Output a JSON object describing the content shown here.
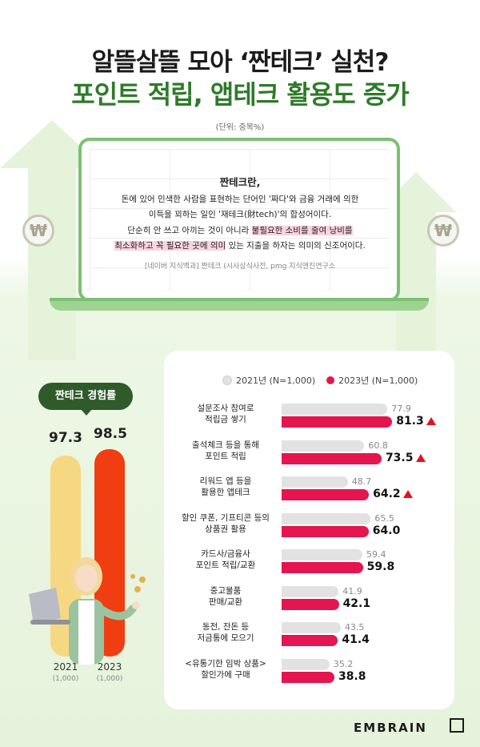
{
  "title_line1": "알뜰살뜰 모아 ‘짠테크’ 실천?",
  "title_line2": "포인트 적립, 앱테크 활용도 증가",
  "unit": "(단위: 중복%)",
  "definition": {
    "heading": "짠테크란,",
    "line1": "돈에 있어 인색한 사람을 표현하는 단어인 '짜다'와 금융 거래에 의한",
    "line2": "이득을 꾀하는 일인 '재테크(財tech)'의 합성어이다.",
    "line3_a": "단순히 안 쓰고 아끼는 것이 아니라 ",
    "line3_hl": "불필요한 소비를 줄여 낭비를",
    "line4_hl": "최소화하고 꼭 필요한 곳에 의미",
    "line4_b": " 있는 지출을 하자는 의미의 신조어이다.",
    "source": "[네이버 지식백과] 짠테크 (시사상식사전, pmg 지식엔진연구소"
  },
  "colors": {
    "y2021": "#f6d882",
    "y2023": "#f03d12",
    "bar2021": "#e2e2e2",
    "bar2023": "#e5154f",
    "green": "#2f7a2a",
    "up": "#e8101e"
  },
  "experience": {
    "label": "짠테크 경험률",
    "y2021": {
      "year": "2021",
      "n": "(1,000)",
      "value": 97.3,
      "value_text": "97.3"
    },
    "y2023": {
      "year": "2023",
      "n": "(1,000)",
      "value": 98.5,
      "value_text": "98.5"
    }
  },
  "chart_data": {
    "type": "bar",
    "orientation": "horizontal",
    "xlim": [
      0,
      100
    ],
    "categories": [
      [
        "설문조사 참여로",
        "적립금 쌓기"
      ],
      [
        "출석체크 등을 통해",
        "포인트 적립"
      ],
      [
        "리워드 앱 등을",
        "활용한 앱테크"
      ],
      [
        "할인 쿠폰, 기프티콘 등의",
        "상품권 활용"
      ],
      [
        "카드사/금융사",
        "포인트 적립/교환"
      ],
      [
        "중고물품",
        "판매/교환"
      ],
      [
        "동전, 잔돈 등",
        "저금통에 모으기"
      ],
      [
        "<유통기한 임박 상품>",
        "할인가에 구매"
      ]
    ],
    "series": [
      {
        "name": "2021년 (N=1,000)",
        "values": [
          77.9,
          60.8,
          48.7,
          65.5,
          59.4,
          41.9,
          43.5,
          35.2
        ],
        "labels": [
          "77.9",
          "60.8",
          "48.7",
          "65.5",
          "59.4",
          "41.9",
          "43.5",
          "35.2"
        ]
      },
      {
        "name": "2023년 (N=1,000)",
        "values": [
          81.3,
          73.5,
          64.2,
          64.0,
          59.8,
          42.1,
          41.4,
          38.8
        ],
        "labels": [
          "81.3",
          "73.5",
          "64.2",
          "64.0",
          "59.8",
          "42.1",
          "41.4",
          "38.8"
        ]
      }
    ],
    "increase_marker": [
      true,
      true,
      true,
      false,
      false,
      false,
      false,
      false
    ]
  },
  "brand": "EMBRAIN"
}
